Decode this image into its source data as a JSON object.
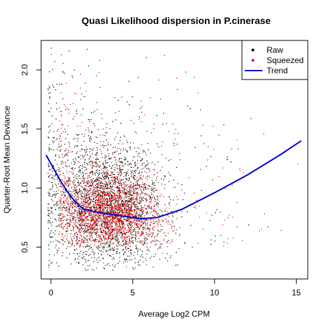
{
  "chart_data": {
    "type": "scatter",
    "title": "Quasi Likelihood dispersion in P.cinerase",
    "xlabel": "Average Log2 CPM",
    "ylabel": "Quarter-Root Mean Deviance",
    "xlim": [
      -0.6,
      15.7
    ],
    "ylim": [
      0.23,
      2.25
    ],
    "x_ticks": [
      0,
      5,
      10,
      15
    ],
    "y_ticks": [
      0.5,
      1.0,
      1.5,
      2.0
    ],
    "x_tick_labels": [
      "0",
      "5",
      "10",
      "15"
    ],
    "y_tick_labels": [
      "0.5",
      "1.0",
      "1.5",
      "2.0"
    ],
    "grid": false,
    "legend": {
      "position": "top-right",
      "entries": [
        {
          "label": "Raw",
          "kind": "point",
          "color": "#000000"
        },
        {
          "label": "Squeezed",
          "kind": "point",
          "color": "#ff0000"
        },
        {
          "label": "Trend",
          "kind": "line",
          "color": "#0000cc"
        }
      ]
    },
    "series": [
      {
        "name": "Raw",
        "kind": "points",
        "color": "#000000",
        "cloud": {
          "x_center": 3.5,
          "x_spread": 1.6,
          "x_range": [
            -0.2,
            14.5
          ],
          "y_center": 0.85,
          "y_spread": 0.25,
          "y_range": [
            0.3,
            2.2
          ],
          "dense_region": {
            "x": [
              1.0,
              7.0
            ],
            "y": [
              0.5,
              1.3
            ]
          }
        }
      },
      {
        "name": "Squeezed",
        "kind": "points",
        "color": "#ff0000",
        "cloud": {
          "x_center": 3.5,
          "x_spread": 1.5,
          "x_range": [
            0.5,
            15.3
          ],
          "y_center": 0.8,
          "y_spread": 0.15,
          "y_range": [
            0.5,
            2.0
          ],
          "dense_region": {
            "x": [
              1.5,
              6.5
            ],
            "y": [
              0.6,
              1.1
            ]
          }
        }
      },
      {
        "name": "Trend",
        "kind": "line",
        "color": "#0000cc",
        "x": [
          -0.3,
          0.5,
          1.0,
          1.5,
          2.0,
          3.0,
          4.0,
          5.0,
          5.5,
          6.5,
          8.0,
          10.0,
          12.0,
          14.0,
          15.3
        ],
        "y": [
          1.28,
          1.08,
          0.97,
          0.88,
          0.82,
          0.79,
          0.77,
          0.75,
          0.74,
          0.75,
          0.82,
          0.96,
          1.11,
          1.28,
          1.4
        ]
      }
    ]
  }
}
